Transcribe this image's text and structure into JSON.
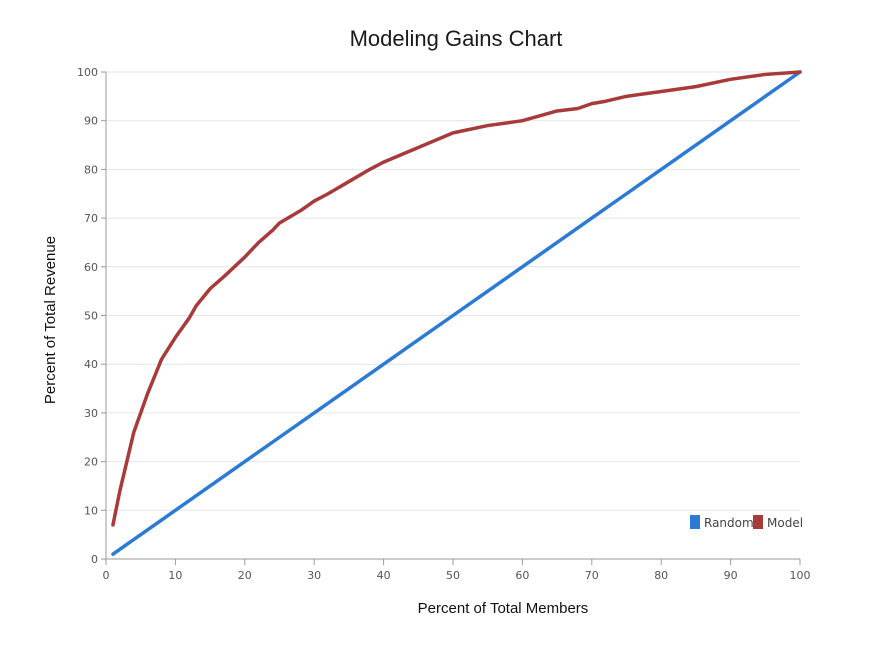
{
  "chart_data": {
    "type": "line",
    "title": "Modeling Gains Chart",
    "xlabel": "Percent of Total Members",
    "ylabel": "Percent of Total Revenue",
    "xlim": [
      0,
      100
    ],
    "ylim": [
      0,
      100
    ],
    "xticks": [
      "0",
      "10",
      "20",
      "30",
      "40",
      "50",
      "60",
      "70",
      "80",
      "90",
      "100"
    ],
    "yticks": [
      "0",
      "10",
      "20",
      "30",
      "40",
      "50",
      "60",
      "70",
      "80",
      "90",
      "100"
    ],
    "grid": true,
    "legend_position": "bottom-right",
    "series": [
      {
        "name": "Random",
        "color": "#2b7bd6",
        "x": [
          1,
          5,
          10,
          15,
          20,
          25,
          30,
          35,
          40,
          45,
          50,
          55,
          60,
          65,
          70,
          75,
          80,
          85,
          90,
          95,
          100
        ],
        "y": [
          1,
          5,
          10,
          15,
          20,
          25,
          30,
          35,
          40,
          45,
          50,
          55,
          60,
          65,
          70,
          75,
          80,
          85,
          90,
          95,
          100
        ]
      },
      {
        "name": "Model",
        "color": "#a83a3a",
        "x": [
          1,
          2,
          3,
          4,
          6,
          8,
          10,
          12,
          13,
          15,
          17,
          20,
          22,
          24,
          25,
          28,
          30,
          32,
          35,
          38,
          40,
          45,
          50,
          55,
          60,
          65,
          68,
          70,
          72,
          75,
          80,
          85,
          90,
          95,
          100
        ],
        "y": [
          7,
          14,
          20,
          26,
          34,
          41,
          45.5,
          49.5,
          52,
          55.5,
          58,
          62,
          65,
          67.5,
          69,
          71.5,
          73.5,
          75,
          77.5,
          80,
          81.5,
          84.5,
          87.5,
          89,
          90,
          92,
          92.5,
          93.5,
          94,
          95,
          96,
          97,
          98.5,
          99.5,
          100
        ]
      }
    ]
  }
}
